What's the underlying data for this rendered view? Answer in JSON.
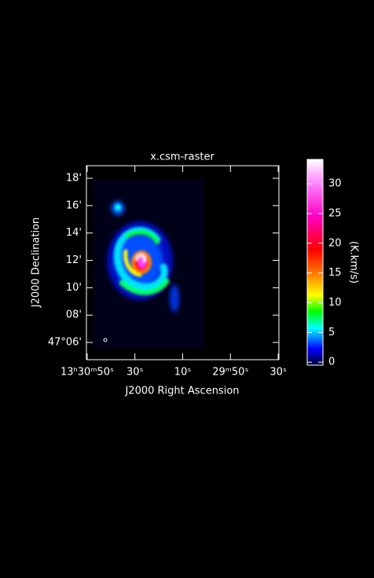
{
  "chart_data": {
    "type": "image",
    "title": "x.csm-raster",
    "x_label": "J2000 Right Ascension",
    "y_label": "J2000 Declination",
    "xlim": [
      110.3,
      29.7
    ],
    "xticks": [
      {
        "value": 110,
        "label": "13ʰ30ᵐ50ˢ"
      },
      {
        "value": 90,
        "label": "30ˢ"
      },
      {
        "value": 70,
        "label": "10ˢ"
      },
      {
        "value": 50,
        "label": "29ᵐ50ˢ"
      },
      {
        "value": 30,
        "label": "30ˢ"
      }
    ],
    "ylim": [
      4.74,
      18.92
    ],
    "yticks": [
      {
        "value": 6,
        "label": "47°06'"
      },
      {
        "value": 8,
        "label": "08'"
      },
      {
        "value": 10,
        "label": "10'"
      },
      {
        "value": 12,
        "label": "12'"
      },
      {
        "value": 14,
        "label": "14'"
      },
      {
        "value": 16,
        "label": "16'"
      },
      {
        "value": 18,
        "label": "18'"
      }
    ],
    "colorbar": {
      "label": "(K.km/s)",
      "lim": [
        -0.5,
        34.1
      ],
      "ticks": [
        0,
        5,
        10,
        15,
        20,
        25,
        30
      ]
    }
  }
}
